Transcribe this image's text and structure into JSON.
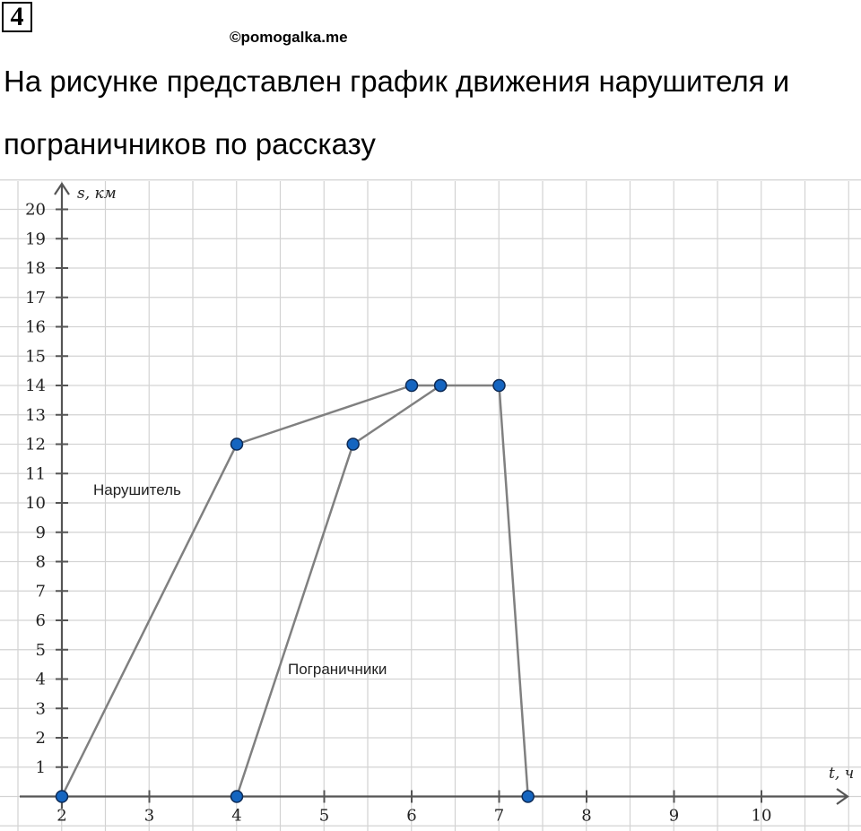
{
  "header": {
    "task_number": "4",
    "watermark": "©pomogalka.me",
    "title_line_1": "На рисунке представлен график движения нарушителя и",
    "title_line_2": "пограничников по рассказу"
  },
  "chart_data": {
    "type": "line",
    "title": "",
    "xlabel": "t, ч",
    "ylabel": "s, км",
    "xlim": [
      2,
      11
    ],
    "ylim": [
      0,
      20
    ],
    "x_ticks": [
      2,
      3,
      4,
      5,
      6,
      7,
      8,
      9,
      10
    ],
    "y_ticks": [
      1,
      2,
      3,
      4,
      5,
      6,
      7,
      8,
      9,
      10,
      11,
      12,
      13,
      14,
      15,
      16,
      17,
      18,
      19,
      20
    ],
    "grid": true,
    "series": [
      {
        "name": "Нарушитель",
        "x": [
          2,
          4,
          6,
          6.33,
          7,
          7.33
        ],
        "y": [
          0,
          12,
          14,
          14,
          14,
          0
        ]
      },
      {
        "name": "Пограничники",
        "x": [
          4,
          5.33,
          6.33
        ],
        "y": [
          0,
          12,
          14
        ]
      }
    ],
    "colors": {
      "line": "#808080",
      "point": "#1565c0",
      "grid": "#d3d3d3",
      "axis": "#555555"
    }
  }
}
